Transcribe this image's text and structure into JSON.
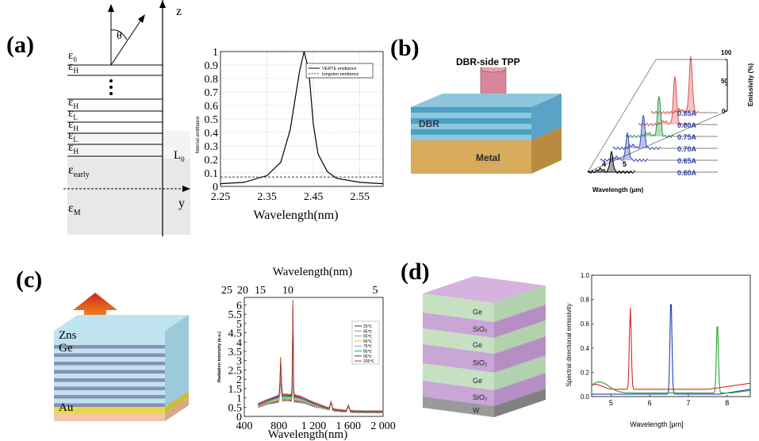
{
  "panels": {
    "a": {
      "label": "(a)",
      "schematic": {
        "z_axis": "z",
        "y_axis": "y",
        "angle": "θ",
        "layers": [
          "ε0",
          "εH",
          "εH",
          "εL",
          "εH",
          "εL",
          "εH"
        ],
        "eps_early": "εearly",
        "eps_M": "εM",
        "L0": "L0",
        "sub_0": "0",
        "sub_H": "H",
        "sub_L": "L",
        "sub_early": "early",
        "sub_M": "M",
        "sub_L0": "0"
      },
      "chart_data": {
        "type": "line",
        "xlabel": "Wavelength(nm)",
        "ylabel": "Normal emittance",
        "xlim": [
          2.25,
          2.6
        ],
        "ylim": [
          0,
          1
        ],
        "xticks": [
          "2.25",
          "2.35",
          "2.45",
          "2.55"
        ],
        "yticks": [
          "0",
          "0.1",
          "0.2",
          "0.3",
          "0.4",
          "0.5",
          "0.6",
          "0.7",
          "0.8",
          "0.9",
          "1"
        ],
        "legend": [
          "VERTE emittance",
          "tungsten emittance"
        ],
        "legend_position": "top-right",
        "series": [
          {
            "name": "VERTE emittance",
            "x": [
              2.25,
              2.3,
              2.35,
              2.38,
              2.4,
              2.42,
              2.43,
              2.44,
              2.45,
              2.46,
              2.48,
              2.5,
              2.55,
              2.6
            ],
            "y": [
              0.02,
              0.03,
              0.08,
              0.18,
              0.42,
              0.85,
              1.0,
              0.86,
              0.46,
              0.24,
              0.11,
              0.06,
              0.03,
              0.02
            ]
          },
          {
            "name": "tungsten emittance",
            "x": [
              2.25,
              2.6
            ],
            "y": [
              0.07,
              0.07
            ]
          }
        ]
      }
    },
    "b": {
      "label": "(b)",
      "tpp_label": "DBR-side TPP",
      "dbr_label": "DBR",
      "metal_label": "Metal",
      "chart_data": {
        "type": "line",
        "xlabel": "Wavelength (μm)",
        "ylabel": "Emissivity (%)",
        "xticks": [
          "4",
          "5"
        ],
        "zticks": [
          "0",
          "50",
          "100"
        ],
        "series_names": [
          "0.60A",
          "0.65A",
          "0.70A",
          "0.75A",
          "0.80A",
          "0.85A"
        ],
        "colors": [
          "#000000",
          "#3a4fb8",
          "#3a4fb8",
          "#2e9a45",
          "#e05050",
          "#e05050"
        ]
      }
    },
    "c": {
      "label": "(c)",
      "layers": [
        "Zns",
        "Ge",
        "Au"
      ],
      "chart_data": {
        "type": "line",
        "xlabel": "Wavelength(nm)",
        "top_xlabel": "Wavelength(nm)",
        "ylabel": "Radiation intensity (a.u.)",
        "xlim": [
          400,
          2000
        ],
        "ylim": [
          0,
          6.4
        ],
        "xticks": [
          "400",
          "800",
          "1 200",
          "1 600",
          "2 000"
        ],
        "top_xticks": [
          "25",
          "20",
          "15",
          "10",
          "5"
        ],
        "yticks": [
          "0",
          "0.5",
          "1",
          "1.5",
          "2",
          "2.5",
          "3",
          "3.5",
          "4",
          "4.5",
          "5",
          "5.5",
          "6"
        ],
        "legend": [
          "25℃",
          "45℃",
          "55℃",
          "65℃",
          "75℃",
          "85℃",
          "95℃",
          "105℃"
        ],
        "legend_position": "right",
        "colors": [
          "#1f3a93",
          "#e87e2a",
          "#9e9e9e",
          "#f1c40f",
          "#5dade2",
          "#27ae60",
          "#2c3e8f",
          "#c0392b"
        ],
        "peaks": [
          {
            "x": 820,
            "y": 3.0
          },
          {
            "x": 960,
            "y": 6.3
          }
        ]
      }
    },
    "d": {
      "label": "(d)",
      "layers": [
        "Ge",
        "SiO₂",
        "Ge",
        "SiO₂",
        "Ge",
        "SiO₂",
        "W"
      ],
      "chart_data": {
        "type": "line",
        "xlabel": "Wavelength [μm]",
        "ylabel": "Spectral directional emissivity",
        "xlim": [
          4.5,
          8.6
        ],
        "ylim": [
          0,
          1.0
        ],
        "xticks": [
          "5",
          "6",
          "7",
          "8"
        ],
        "yticks": [
          "0.0",
          "0.2",
          "0.4",
          "0.6",
          "0.8",
          "1.0"
        ],
        "series": [
          {
            "color": "#d62728",
            "peak_x": 5.5,
            "peak_y": 0.73
          },
          {
            "color": "#1f3fbf",
            "peak_x": 6.55,
            "peak_y": 0.82
          },
          {
            "color": "#2ca02c",
            "peak_x": 7.75,
            "peak_y": 0.62
          }
        ]
      }
    }
  }
}
